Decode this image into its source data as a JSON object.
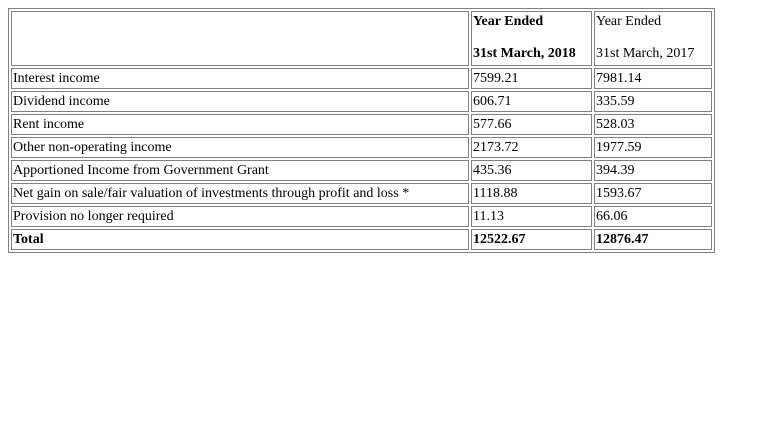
{
  "header": {
    "col1_line1": "Year Ended",
    "col1_line2": "31st March, 2018",
    "col2_line1": "Year Ended",
    "col2_line2": "31st March, 2017"
  },
  "rows": [
    {
      "label": "Interest income",
      "fy2018": "7599.21",
      "fy2017": "7981.14"
    },
    {
      "label": "Dividend income",
      "fy2018": "606.71",
      "fy2017": "335.59"
    },
    {
      "label": "Rent income",
      "fy2018": "577.66",
      "fy2017": "528.03"
    },
    {
      "label": "Other non-operating income",
      "fy2018": "2173.72",
      "fy2017": "1977.59"
    },
    {
      "label": "Apportioned Income from Government Grant",
      "fy2018": "435.36",
      "fy2017": "394.39"
    },
    {
      "label": "Net gain on sale/fair valuation of investments through profit and loss *",
      "fy2018": "1118.88",
      "fy2017": "1593.67"
    },
    {
      "label": "Provision no longer required",
      "fy2018": "11.13",
      "fy2017": "66.06"
    }
  ],
  "total": {
    "label": "Total",
    "fy2018": "12522.67",
    "fy2017": "12876.47"
  }
}
